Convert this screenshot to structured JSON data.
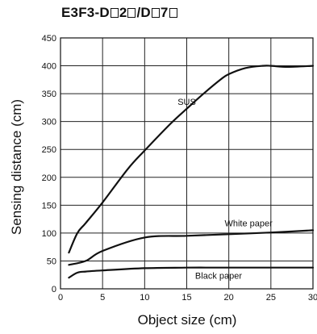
{
  "chart_data": {
    "type": "line",
    "title": "E3F3-D□2□/D□7□",
    "xlabel": "Object size (cm)",
    "ylabel": "Sensing distance (cm)",
    "xlim": [
      0,
      30
    ],
    "ylim": [
      0,
      450
    ],
    "xticks": [
      0,
      5,
      10,
      15,
      20,
      25,
      30
    ],
    "yticks": [
      0,
      50,
      100,
      150,
      200,
      250,
      300,
      350,
      400,
      450
    ],
    "grid": true,
    "series": [
      {
        "name": "SUS",
        "x": [
          1,
          2,
          3,
          5,
          8,
          10,
          13,
          15,
          17,
          19,
          20,
          22,
          24,
          25,
          27,
          30
        ],
        "y": [
          65,
          100,
          118,
          155,
          215,
          248,
          295,
          323,
          350,
          375,
          385,
          396,
          400,
          400,
          398,
          400
        ]
      },
      {
        "name": "White paper",
        "x": [
          1,
          3,
          5,
          10,
          15,
          20,
          25,
          30
        ],
        "y": [
          43,
          50,
          68,
          92,
          95,
          98,
          101,
          105
        ]
      },
      {
        "name": "Black paper",
        "x": [
          1,
          2,
          3,
          5,
          10,
          15,
          20,
          25,
          30
        ],
        "y": [
          20,
          29,
          31,
          33,
          37,
          38,
          38,
          38,
          38
        ]
      }
    ]
  }
}
